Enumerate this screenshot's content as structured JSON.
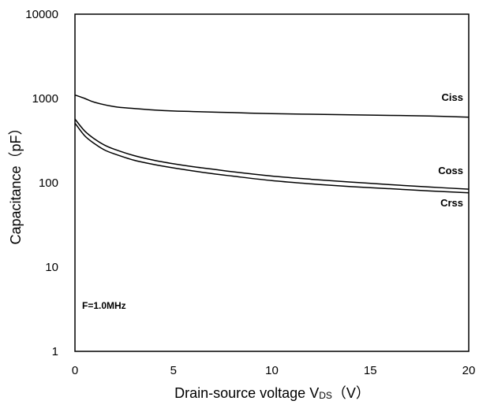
{
  "chart_data": {
    "type": "line",
    "xlabel": "Drain-source voltage V",
    "xlabel_subscript": "DS",
    "xlabel_unit": "（V）",
    "ylabel": "Capacitance（pF）",
    "xlim": [
      0,
      20
    ],
    "ylim": [
      1,
      10000
    ],
    "y_scale": "log",
    "grid": false,
    "x_ticks": [
      "0",
      "5",
      "10",
      "15",
      "20"
    ],
    "y_ticks": [
      "1",
      "10",
      "100",
      "1000",
      "10000"
    ],
    "annotation": "F=1.0MHz",
    "series": [
      {
        "name": "Ciss",
        "x": [
          0,
          0.5,
          1,
          2,
          3,
          4,
          5,
          6,
          8,
          10,
          12,
          14,
          16,
          18,
          20
        ],
        "values": [
          1100,
          1000,
          900,
          800,
          760,
          730,
          710,
          700,
          680,
          660,
          650,
          640,
          630,
          620,
          600
        ]
      },
      {
        "name": "Coss",
        "x": [
          0,
          0.5,
          1,
          1.5,
          2,
          3,
          4,
          5,
          6,
          7,
          8,
          10,
          12,
          14,
          16,
          18,
          20
        ],
        "values": [
          570,
          410,
          330,
          280,
          250,
          210,
          185,
          168,
          155,
          145,
          135,
          120,
          110,
          102,
          95,
          89,
          84
        ]
      },
      {
        "name": "Crss",
        "x": [
          0,
          0.5,
          1,
          1.5,
          2,
          3,
          4,
          5,
          6,
          7,
          8,
          10,
          12,
          14,
          16,
          18,
          20
        ],
        "values": [
          510,
          360,
          290,
          245,
          220,
          185,
          165,
          150,
          138,
          128,
          120,
          106,
          97,
          90,
          85,
          80,
          76
        ]
      }
    ]
  }
}
